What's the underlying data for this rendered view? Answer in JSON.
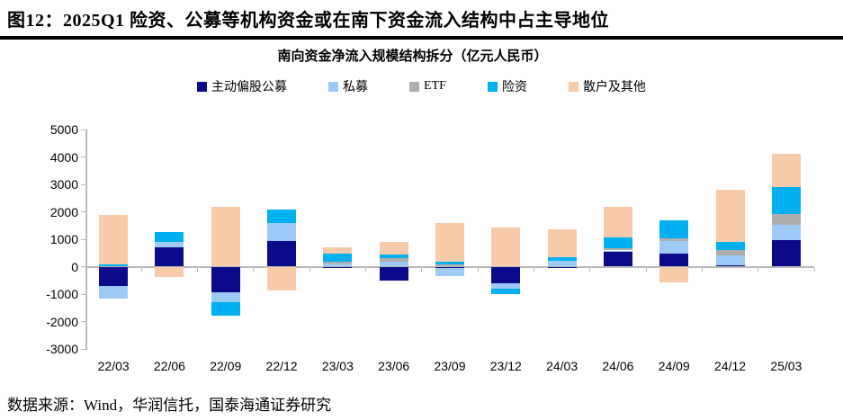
{
  "header": {
    "title": "图12：2025Q1 险资、公募等机构资金或在南下资金流入结构中占主导地位"
  },
  "footer": {
    "source": "数据来源：Wind，华润信托，国泰海通证券研究"
  },
  "chart_data": {
    "type": "bar",
    "stacked": true,
    "title": "南向资金净流入规模结构拆分（亿元人民币）",
    "unit": "亿元人民币",
    "categories": [
      "22/03",
      "22/06",
      "22/09",
      "22/12",
      "23/03",
      "23/06",
      "23/09",
      "23/12",
      "24/03",
      "24/06",
      "24/09",
      "24/12",
      "25/03"
    ],
    "series": [
      {
        "name": "主动偏股公募",
        "color": "#0a0a8a",
        "values": [
          -700,
          690,
          -930,
          940,
          -60,
          -510,
          -50,
          -600,
          -60,
          540,
          490,
          50,
          960
        ]
      },
      {
        "name": "私募",
        "color": "#9dc9f7",
        "values": [
          -460,
          210,
          -380,
          660,
          120,
          170,
          -280,
          -200,
          220,
          50,
          440,
          350,
          570
        ]
      },
      {
        "name": "ETF",
        "color": "#aeaeae",
        "values": [
          0,
          0,
          0,
          0,
          60,
          130,
          80,
          0,
          0,
          70,
          90,
          220,
          380
        ]
      },
      {
        "name": "险资",
        "color": "#00b0f0",
        "values": [
          90,
          360,
          -490,
          480,
          310,
          130,
          90,
          -200,
          110,
          390,
          680,
          270,
          980
        ]
      },
      {
        "name": "散户及其他",
        "color": "#f7cba9",
        "values": [
          1810,
          -380,
          2190,
          -870,
          230,
          470,
          1430,
          1420,
          1040,
          1130,
          -580,
          1910,
          1220
        ]
      }
    ],
    "ylim": [
      -3000,
      5000
    ],
    "ytick_step": 1000,
    "legend_position": "top",
    "grid": false,
    "axis_color": "#b9b9b9"
  }
}
